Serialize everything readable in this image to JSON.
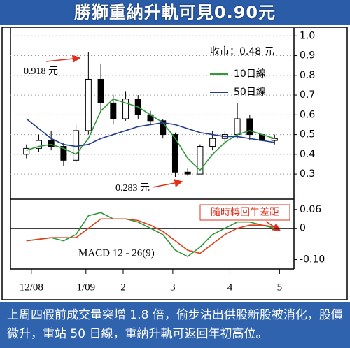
{
  "chart_data": [
    {
      "type": "candlestick",
      "title": "勝獅重納升軌可見0.90元",
      "x": [
        1,
        2,
        3,
        4,
        5,
        6,
        7,
        8,
        9,
        10,
        11,
        12,
        13,
        14,
        15,
        16,
        17,
        18,
        19,
        20,
        21
      ],
      "open": [
        0.4,
        0.43,
        0.47,
        0.44,
        0.37,
        0.52,
        0.78,
        0.66,
        0.58,
        0.68,
        0.6,
        0.57,
        0.5,
        0.31,
        0.3,
        0.44,
        0.48,
        0.5,
        0.58,
        0.5,
        0.47
      ],
      "high": [
        0.45,
        0.5,
        0.52,
        0.46,
        0.55,
        0.918,
        0.86,
        0.7,
        0.72,
        0.7,
        0.62,
        0.58,
        0.51,
        0.33,
        0.45,
        0.52,
        0.52,
        0.66,
        0.6,
        0.54,
        0.5
      ],
      "low": [
        0.38,
        0.41,
        0.42,
        0.34,
        0.36,
        0.5,
        0.62,
        0.55,
        0.57,
        0.58,
        0.55,
        0.48,
        0.283,
        0.29,
        0.3,
        0.42,
        0.45,
        0.48,
        0.47,
        0.46,
        0.45
      ],
      "close": [
        0.43,
        0.47,
        0.44,
        0.37,
        0.52,
        0.78,
        0.66,
        0.58,
        0.68,
        0.6,
        0.57,
        0.5,
        0.31,
        0.3,
        0.44,
        0.48,
        0.5,
        0.58,
        0.5,
        0.47,
        0.48
      ],
      "candle_color": "#000000",
      "series": [
        {
          "name": "10日線",
          "color": "#2e9a3a",
          "values": [
            0.42,
            0.44,
            0.45,
            0.43,
            0.4,
            0.48,
            0.62,
            0.68,
            0.66,
            0.64,
            0.6,
            0.56,
            0.48,
            0.38,
            0.32,
            0.4,
            0.46,
            0.5,
            0.52,
            0.5,
            0.48
          ]
        },
        {
          "name": "50日線",
          "color": "#1f3a93",
          "values": [
            0.58,
            0.53,
            0.48,
            0.45,
            0.44,
            0.45,
            0.48,
            0.5,
            0.52,
            0.54,
            0.55,
            0.56,
            0.55,
            0.53,
            0.51,
            0.5,
            0.49,
            0.49,
            0.48,
            0.47,
            0.46
          ]
        }
      ],
      "xlim": [
        0,
        22
      ],
      "ylim": [
        0.18,
        1.04
      ],
      "yticks": [
        {
          "value": 1,
          "label": "1.0"
        },
        0.9,
        0.8,
        0.7,
        0.6,
        0.5,
        0.4,
        0.3
      ],
      "grid": true,
      "annotations": [
        "收市：0.48 元",
        "0.918 元",
        "0.283 元"
      ]
    },
    {
      "type": "line",
      "x": [
        1,
        2,
        3,
        4,
        5,
        6,
        7,
        8,
        9,
        10,
        11,
        12,
        13,
        14,
        15,
        16,
        17,
        18,
        19,
        20,
        21
      ],
      "series": [
        {
          "color": "#2e9a3a",
          "values": [
            -0.04,
            -0.035,
            -0.03,
            -0.04,
            -0.02,
            0.04,
            0.05,
            0.03,
            0.03,
            0.02,
            0.0,
            -0.02,
            -0.07,
            -0.09,
            -0.06,
            -0.02,
            0.0,
            0.02,
            0.02,
            0.01,
            0.0
          ]
        },
        {
          "color": "#e0401c",
          "values": [
            -0.04,
            -0.035,
            -0.03,
            -0.03,
            -0.03,
            0.0,
            0.03,
            0.03,
            0.03,
            0.025,
            0.01,
            -0.01,
            -0.04,
            -0.07,
            -0.08,
            -0.05,
            -0.02,
            0.0,
            0.01,
            0.01,
            0.005
          ]
        }
      ],
      "xlim": [
        0,
        22
      ],
      "ylim": [
        -0.13,
        0.093
      ],
      "yticks": [
        0.06,
        0,
        {
          "value": -0.1,
          "label": "-0.10"
        }
      ],
      "xticks": [
        {
          "value": 1.4,
          "label": "12/08"
        },
        {
          "value": 5.8,
          "label": "1/09"
        },
        {
          "value": 8.8,
          "label": "2"
        },
        {
          "value": 12.8,
          "label": "3"
        },
        {
          "value": 17.4,
          "label": "4"
        },
        {
          "value": 21.4,
          "label": "5"
        }
      ],
      "annotations": [
        "隨時轉回牛差距",
        "MACD 12 - 26(9)"
      ]
    }
  ],
  "caption": "上周四假前成交量突增 1.8 倍，偷步沽出供股新股被消化，股價微升，重站 50 日線，重納升軌可返回年初高位。"
}
